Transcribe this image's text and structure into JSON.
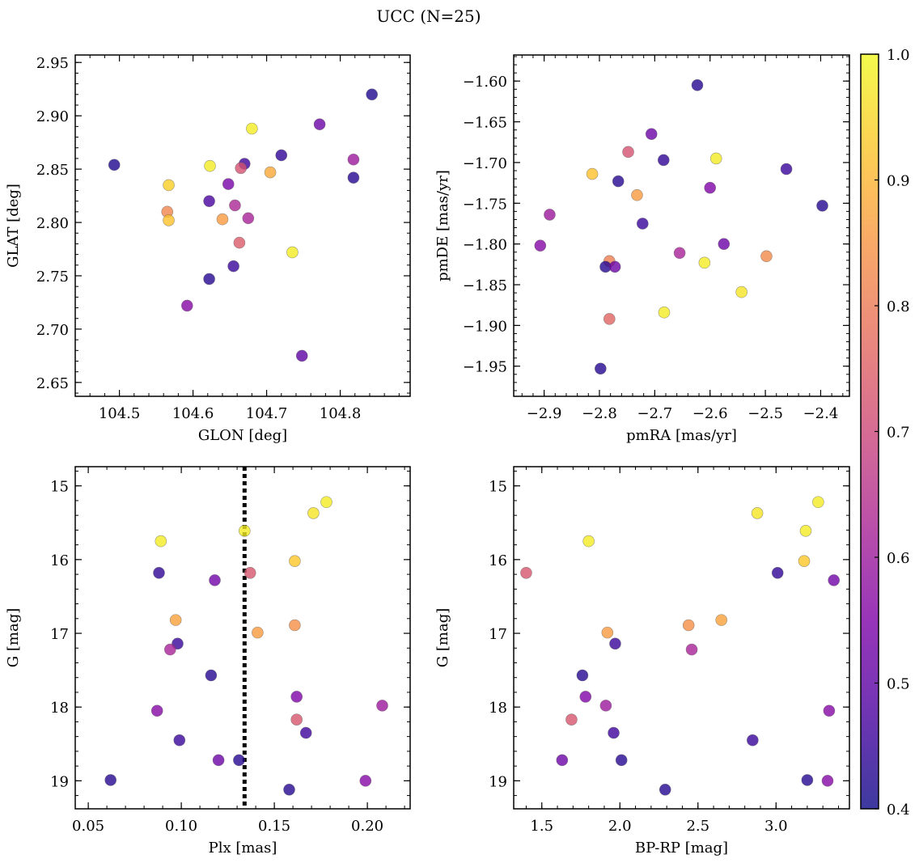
{
  "figure_title": "UCC (N=25)",
  "colorbar": {
    "range": [
      0.4,
      1.0
    ],
    "ticks": [
      "0.4",
      "0.5",
      "0.6",
      "0.7",
      "0.8",
      "0.9",
      "1.0"
    ],
    "colormap": "plasma",
    "marker_alpha": 0.8
  },
  "chart_data": [
    {
      "type": "scatter",
      "xlabel": "GLON [deg]",
      "ylabel": "GLAT [deg]",
      "xlim": [
        104.44,
        104.895
      ],
      "ylim": [
        2.637,
        2.957
      ],
      "xticks": [
        "104.5",
        "104.6",
        "104.7",
        "104.8"
      ],
      "yticks": [
        "2.65",
        "2.70",
        "2.75",
        "2.80",
        "2.85",
        "2.90",
        "2.95"
      ],
      "points": [
        {
          "x": 104.493,
          "y": 2.854,
          "c": 0.42
        },
        {
          "x": 104.843,
          "y": 2.92,
          "c": 0.42
        },
        {
          "x": 104.68,
          "y": 2.888,
          "c": 0.98
        },
        {
          "x": 104.772,
          "y": 2.892,
          "c": 0.52
        },
        {
          "x": 104.72,
          "y": 2.863,
          "c": 0.44
        },
        {
          "x": 104.818,
          "y": 2.859,
          "c": 0.6
        },
        {
          "x": 104.67,
          "y": 2.855,
          "c": 0.46
        },
        {
          "x": 104.623,
          "y": 2.853,
          "c": 0.98
        },
        {
          "x": 104.665,
          "y": 2.851,
          "c": 0.72
        },
        {
          "x": 104.705,
          "y": 2.847,
          "c": 0.88
        },
        {
          "x": 104.818,
          "y": 2.842,
          "c": 0.43
        },
        {
          "x": 104.648,
          "y": 2.836,
          "c": 0.54
        },
        {
          "x": 104.567,
          "y": 2.835,
          "c": 0.94
        },
        {
          "x": 104.622,
          "y": 2.82,
          "c": 0.47
        },
        {
          "x": 104.657,
          "y": 2.816,
          "c": 0.63
        },
        {
          "x": 104.565,
          "y": 2.81,
          "c": 0.82
        },
        {
          "x": 104.675,
          "y": 2.804,
          "c": 0.62
        },
        {
          "x": 104.64,
          "y": 2.803,
          "c": 0.86
        },
        {
          "x": 104.567,
          "y": 2.802,
          "c": 0.92
        },
        {
          "x": 104.663,
          "y": 2.781,
          "c": 0.74
        },
        {
          "x": 104.735,
          "y": 2.772,
          "c": 0.98
        },
        {
          "x": 104.655,
          "y": 2.759,
          "c": 0.45
        },
        {
          "x": 104.622,
          "y": 2.747,
          "c": 0.43
        },
        {
          "x": 104.592,
          "y": 2.722,
          "c": 0.56
        },
        {
          "x": 104.748,
          "y": 2.675,
          "c": 0.5
        }
      ]
    },
    {
      "type": "scatter",
      "xlabel": "pmRA [mas/yr]",
      "ylabel": "pmDE [mas/yr]",
      "xlim": [
        -2.955,
        -2.348
      ],
      "ylim": [
        -1.987,
        -1.568
      ],
      "xticks": [
        "−2.9",
        "−2.8",
        "−2.7",
        "−2.6",
        "−2.5",
        "−2.4"
      ],
      "yticks": [
        "−1.95",
        "−1.90",
        "−1.85",
        "−1.80",
        "−1.75",
        "−1.70",
        "−1.65",
        "−1.60"
      ],
      "points": [
        {
          "x": -2.623,
          "y": -1.605,
          "c": 0.43
        },
        {
          "x": -2.706,
          "y": -1.665,
          "c": 0.52
        },
        {
          "x": -2.748,
          "y": -1.687,
          "c": 0.72
        },
        {
          "x": -2.589,
          "y": -1.695,
          "c": 0.98
        },
        {
          "x": -2.684,
          "y": -1.697,
          "c": 0.44
        },
        {
          "x": -2.462,
          "y": -1.708,
          "c": 0.45
        },
        {
          "x": -2.813,
          "y": -1.714,
          "c": 0.92
        },
        {
          "x": -2.766,
          "y": -1.723,
          "c": 0.43
        },
        {
          "x": -2.6,
          "y": -1.731,
          "c": 0.55
        },
        {
          "x": -2.732,
          "y": -1.74,
          "c": 0.86
        },
        {
          "x": -2.397,
          "y": -1.753,
          "c": 0.43
        },
        {
          "x": -2.89,
          "y": -1.764,
          "c": 0.6
        },
        {
          "x": -2.722,
          "y": -1.775,
          "c": 0.45
        },
        {
          "x": -2.575,
          "y": -1.8,
          "c": 0.52
        },
        {
          "x": -2.907,
          "y": -1.802,
          "c": 0.56
        },
        {
          "x": -2.655,
          "y": -1.811,
          "c": 0.62
        },
        {
          "x": -2.498,
          "y": -1.815,
          "c": 0.83
        },
        {
          "x": -2.782,
          "y": -1.821,
          "c": 0.81
        },
        {
          "x": -2.61,
          "y": -1.823,
          "c": 0.98
        },
        {
          "x": -2.789,
          "y": -1.828,
          "c": 0.43
        },
        {
          "x": -2.772,
          "y": -1.828,
          "c": 0.52
        },
        {
          "x": -2.543,
          "y": -1.859,
          "c": 0.97
        },
        {
          "x": -2.683,
          "y": -1.884,
          "c": 0.98
        },
        {
          "x": -2.782,
          "y": -1.892,
          "c": 0.76
        },
        {
          "x": -2.798,
          "y": -1.953,
          "c": 0.43
        }
      ]
    },
    {
      "type": "scatter",
      "xlabel": "Plx [mas]",
      "ylabel": "G [mag]",
      "xlim": [
        0.043,
        0.223
      ],
      "ylim": [
        19.38,
        14.74
      ],
      "invert_y": true,
      "xticks": [
        "0.05",
        "0.10",
        "0.15",
        "0.20"
      ],
      "yticks": [
        "15",
        "16",
        "17",
        "18",
        "19"
      ],
      "vline": {
        "x": 0.134,
        "style": "dotted"
      },
      "points": [
        {
          "x": 0.178,
          "y": 15.22,
          "c": 0.98
        },
        {
          "x": 0.171,
          "y": 15.37,
          "c": 0.97
        },
        {
          "x": 0.134,
          "y": 15.61,
          "c": 0.98
        },
        {
          "x": 0.089,
          "y": 15.75,
          "c": 0.98
        },
        {
          "x": 0.161,
          "y": 16.02,
          "c": 0.93
        },
        {
          "x": 0.088,
          "y": 16.18,
          "c": 0.44
        },
        {
          "x": 0.137,
          "y": 16.18,
          "c": 0.73
        },
        {
          "x": 0.118,
          "y": 16.28,
          "c": 0.53
        },
        {
          "x": 0.097,
          "y": 16.82,
          "c": 0.87
        },
        {
          "x": 0.161,
          "y": 16.89,
          "c": 0.84
        },
        {
          "x": 0.141,
          "y": 16.99,
          "c": 0.86
        },
        {
          "x": 0.098,
          "y": 17.14,
          "c": 0.45
        },
        {
          "x": 0.094,
          "y": 17.22,
          "c": 0.62
        },
        {
          "x": 0.116,
          "y": 17.57,
          "c": 0.43
        },
        {
          "x": 0.162,
          "y": 17.86,
          "c": 0.55
        },
        {
          "x": 0.208,
          "y": 17.98,
          "c": 0.6
        },
        {
          "x": 0.087,
          "y": 18.05,
          "c": 0.56
        },
        {
          "x": 0.162,
          "y": 18.17,
          "c": 0.73
        },
        {
          "x": 0.167,
          "y": 18.35,
          "c": 0.46
        },
        {
          "x": 0.099,
          "y": 18.45,
          "c": 0.45
        },
        {
          "x": 0.12,
          "y": 18.72,
          "c": 0.52
        },
        {
          "x": 0.131,
          "y": 18.72,
          "c": 0.43
        },
        {
          "x": 0.062,
          "y": 18.99,
          "c": 0.43
        },
        {
          "x": 0.199,
          "y": 19.0,
          "c": 0.56
        },
        {
          "x": 0.158,
          "y": 19.12,
          "c": 0.43
        }
      ]
    },
    {
      "type": "scatter",
      "xlabel": "BP-RP [mag]",
      "ylabel": "G [mag]",
      "xlim": [
        1.32,
        3.47
      ],
      "ylim": [
        19.38,
        14.74
      ],
      "invert_y": true,
      "xticks": [
        "1.5",
        "2.0",
        "2.5",
        "3.0"
      ],
      "yticks": [
        "15",
        "16",
        "17",
        "18",
        "19"
      ],
      "points": [
        {
          "x": 3.27,
          "y": 15.22,
          "c": 0.98
        },
        {
          "x": 2.88,
          "y": 15.37,
          "c": 0.97
        },
        {
          "x": 3.19,
          "y": 15.61,
          "c": 0.98
        },
        {
          "x": 1.8,
          "y": 15.75,
          "c": 0.98
        },
        {
          "x": 3.18,
          "y": 16.02,
          "c": 0.93
        },
        {
          "x": 1.4,
          "y": 16.18,
          "c": 0.73
        },
        {
          "x": 3.01,
          "y": 16.18,
          "c": 0.44
        },
        {
          "x": 3.37,
          "y": 16.28,
          "c": 0.53
        },
        {
          "x": 2.65,
          "y": 16.82,
          "c": 0.87
        },
        {
          "x": 2.44,
          "y": 16.89,
          "c": 0.84
        },
        {
          "x": 1.92,
          "y": 16.99,
          "c": 0.86
        },
        {
          "x": 1.97,
          "y": 17.14,
          "c": 0.45
        },
        {
          "x": 2.46,
          "y": 17.22,
          "c": 0.62
        },
        {
          "x": 1.76,
          "y": 17.57,
          "c": 0.43
        },
        {
          "x": 1.78,
          "y": 17.86,
          "c": 0.55
        },
        {
          "x": 1.91,
          "y": 17.98,
          "c": 0.6
        },
        {
          "x": 3.34,
          "y": 18.05,
          "c": 0.56
        },
        {
          "x": 1.69,
          "y": 18.17,
          "c": 0.73
        },
        {
          "x": 1.96,
          "y": 18.35,
          "c": 0.46
        },
        {
          "x": 2.85,
          "y": 18.45,
          "c": 0.45
        },
        {
          "x": 1.63,
          "y": 18.72,
          "c": 0.52
        },
        {
          "x": 2.01,
          "y": 18.72,
          "c": 0.43
        },
        {
          "x": 3.2,
          "y": 18.99,
          "c": 0.43
        },
        {
          "x": 3.33,
          "y": 19.0,
          "c": 0.56
        },
        {
          "x": 2.29,
          "y": 19.12,
          "c": 0.43
        }
      ]
    }
  ]
}
